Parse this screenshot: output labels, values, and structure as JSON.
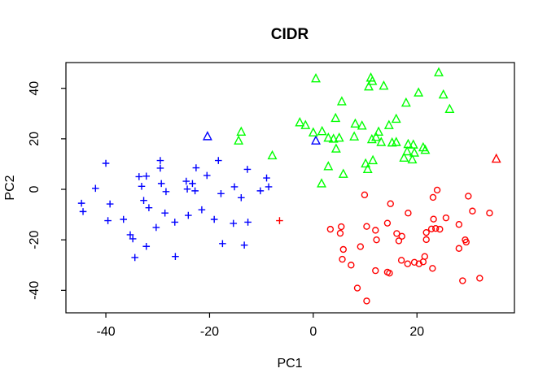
{
  "chart_data": {
    "type": "scatter",
    "title": "CIDR",
    "x_axis": {
      "label": "PC1",
      "tick_values": [
        -40,
        -20,
        0,
        20
      ],
      "tick_labels": [
        "-40",
        "-20",
        "0",
        "20"
      ]
    },
    "y_axis": {
      "label": "PC2",
      "tick_values": [
        -40,
        -20,
        0,
        20,
        40
      ],
      "tick_labels": [
        "-40",
        "-20",
        "0",
        "20",
        "40"
      ]
    },
    "xlim": [
      -47.7,
      38.8
    ],
    "ylim": [
      -48.9,
      50.2
    ],
    "grid": false,
    "legend": "none",
    "colors": {
      "blue": "#0000FF",
      "green": "#00FF00",
      "red": "#FF0000",
      "axis": "#000000",
      "background": "#FFFFFF"
    },
    "series": [
      {
        "name": "blue-cluster-plus",
        "color": "#0000FF",
        "symbol": "plus",
        "points": [
          [
            -40.0,
            10.3
          ],
          [
            -29.5,
            11.4
          ],
          [
            -29.5,
            8.4
          ],
          [
            -33.6,
            5.0
          ],
          [
            -32.2,
            5.2
          ],
          [
            -33.1,
            1.2
          ],
          [
            -42.0,
            0.4
          ],
          [
            -24.5,
            3.2
          ],
          [
            -24.3,
            0.1
          ],
          [
            -44.7,
            -5.5
          ],
          [
            -44.4,
            -8.8
          ],
          [
            -39.2,
            -5.8
          ],
          [
            -32.7,
            -4.4
          ],
          [
            -31.7,
            -7.3
          ],
          [
            -28.6,
            -9.4
          ],
          [
            -39.6,
            -12.4
          ],
          [
            -36.6,
            -11.9
          ],
          [
            -30.3,
            -15.1
          ],
          [
            -26.7,
            -13.0
          ],
          [
            -24.1,
            -10.3
          ],
          [
            -35.3,
            -18.0
          ],
          [
            -34.8,
            -19.6
          ],
          [
            -34.4,
            -27.0
          ],
          [
            -26.6,
            -26.6
          ],
          [
            -32.2,
            -22.6
          ],
          [
            -18.3,
            11.4
          ],
          [
            -22.6,
            8.5
          ],
          [
            -20.5,
            5.5
          ],
          [
            -12.7,
            7.9
          ],
          [
            -23.3,
            2.3
          ],
          [
            -22.8,
            -0.6
          ],
          [
            -9.0,
            4.5
          ],
          [
            -8.6,
            1.0
          ],
          [
            -10.2,
            -0.6
          ],
          [
            -15.2,
            1.0
          ],
          [
            -17.8,
            -1.7
          ],
          [
            -13.9,
            -3.3
          ],
          [
            -21.5,
            -8.1
          ],
          [
            -19.1,
            -11.9
          ],
          [
            -15.4,
            -13.5
          ],
          [
            -12.6,
            -13.0
          ],
          [
            -17.5,
            -21.5
          ],
          [
            -13.3,
            -22.1
          ],
          [
            -29.3,
            2.3
          ],
          [
            -28.4,
            -0.9
          ]
        ]
      },
      {
        "name": "blue-triangles",
        "color": "#0000FF",
        "symbol": "triangle",
        "points": [
          [
            -20.4,
            20.9
          ],
          [
            0.5,
            19.2
          ]
        ]
      },
      {
        "name": "green-cluster-triangle",
        "color": "#00FF00",
        "symbol": "triangle",
        "points": [
          [
            0.5,
            43.8
          ],
          [
            11.1,
            44.1
          ],
          [
            11.4,
            42.8
          ],
          [
            10.7,
            40.6
          ],
          [
            13.6,
            40.9
          ],
          [
            24.2,
            46.2
          ],
          [
            20.3,
            38.2
          ],
          [
            25.1,
            37.4
          ],
          [
            5.5,
            34.7
          ],
          [
            17.9,
            34.2
          ],
          [
            26.3,
            31.7
          ],
          [
            -2.6,
            26.4
          ],
          [
            -1.5,
            25.3
          ],
          [
            4.3,
            28.1
          ],
          [
            8.1,
            25.9
          ],
          [
            9.4,
            25.1
          ],
          [
            14.6,
            25.3
          ],
          [
            16.0,
            27.8
          ],
          [
            -13.9,
            22.7
          ],
          [
            -14.4,
            19.2
          ],
          [
            -7.9,
            13.3
          ],
          [
            0.0,
            22.4
          ],
          [
            1.7,
            22.9
          ],
          [
            2.9,
            20.3
          ],
          [
            3.9,
            19.9
          ],
          [
            5.0,
            20.3
          ],
          [
            7.9,
            20.8
          ],
          [
            4.4,
            16.0
          ],
          [
            11.3,
            19.7
          ],
          [
            12.1,
            20.6
          ],
          [
            12.6,
            22.7
          ],
          [
            13.1,
            18.6
          ],
          [
            15.2,
            18.4
          ],
          [
            16.0,
            18.6
          ],
          [
            18.3,
            17.8
          ],
          [
            19.3,
            17.6
          ],
          [
            18.1,
            14.9
          ],
          [
            19.5,
            14.4
          ],
          [
            17.5,
            12.4
          ],
          [
            19.1,
            11.7
          ],
          [
            10.1,
            10.1
          ],
          [
            11.5,
            11.4
          ],
          [
            10.5,
            7.9
          ],
          [
            2.9,
            9.0
          ],
          [
            5.8,
            6.0
          ],
          [
            21.2,
            16.5
          ],
          [
            21.6,
            15.5
          ],
          [
            1.6,
            2.2
          ]
        ]
      },
      {
        "name": "red-cluster-circle",
        "color": "#FF0000",
        "symbol": "circle",
        "points": [
          [
            9.9,
            -2.2
          ],
          [
            14.9,
            -5.7
          ],
          [
            18.3,
            -9.4
          ],
          [
            14.3,
            -13.4
          ],
          [
            10.3,
            -14.7
          ],
          [
            12.0,
            -16.2
          ],
          [
            3.3,
            -15.8
          ],
          [
            5.4,
            -14.8
          ],
          [
            5.2,
            -17.4
          ],
          [
            16.1,
            -17.5
          ],
          [
            17.1,
            -18.6
          ],
          [
            12.2,
            -20.0
          ],
          [
            16.5,
            -20.4
          ],
          [
            23.9,
            -0.3
          ],
          [
            23.1,
            -3.2
          ],
          [
            29.9,
            -2.7
          ],
          [
            30.7,
            -8.6
          ],
          [
            34.0,
            -9.4
          ],
          [
            23.2,
            -11.8
          ],
          [
            25.6,
            -11.3
          ],
          [
            28.1,
            -13.9
          ],
          [
            21.8,
            -17.1
          ],
          [
            22.8,
            -15.7
          ],
          [
            23.6,
            -15.5
          ],
          [
            24.4,
            -15.8
          ],
          [
            29.3,
            -20.0
          ],
          [
            9.1,
            -22.7
          ],
          [
            5.8,
            -23.8
          ],
          [
            5.6,
            -27.7
          ],
          [
            7.3,
            -30.0
          ],
          [
            12.0,
            -32.2
          ],
          [
            14.3,
            -32.8
          ],
          [
            14.7,
            -33.2
          ],
          [
            17.0,
            -28.1
          ],
          [
            18.2,
            -29.5
          ],
          [
            19.5,
            -28.9
          ],
          [
            8.5,
            -39.1
          ],
          [
            10.3,
            -44.2
          ],
          [
            21.8,
            -19.9
          ],
          [
            28.1,
            -23.4
          ],
          [
            29.5,
            -20.9
          ],
          [
            21.5,
            -26.6
          ],
          [
            20.4,
            -29.5
          ],
          [
            21.2,
            -28.7
          ],
          [
            23.0,
            -31.3
          ],
          [
            28.8,
            -36.2
          ],
          [
            32.1,
            -35.2
          ]
        ]
      },
      {
        "name": "red-plus",
        "color": "#FF0000",
        "symbol": "plus",
        "points": [
          [
            -6.5,
            -12.4
          ]
        ]
      },
      {
        "name": "red-triangle",
        "color": "#FF0000",
        "symbol": "triangle",
        "points": [
          [
            35.3,
            12.0
          ]
        ]
      }
    ]
  }
}
